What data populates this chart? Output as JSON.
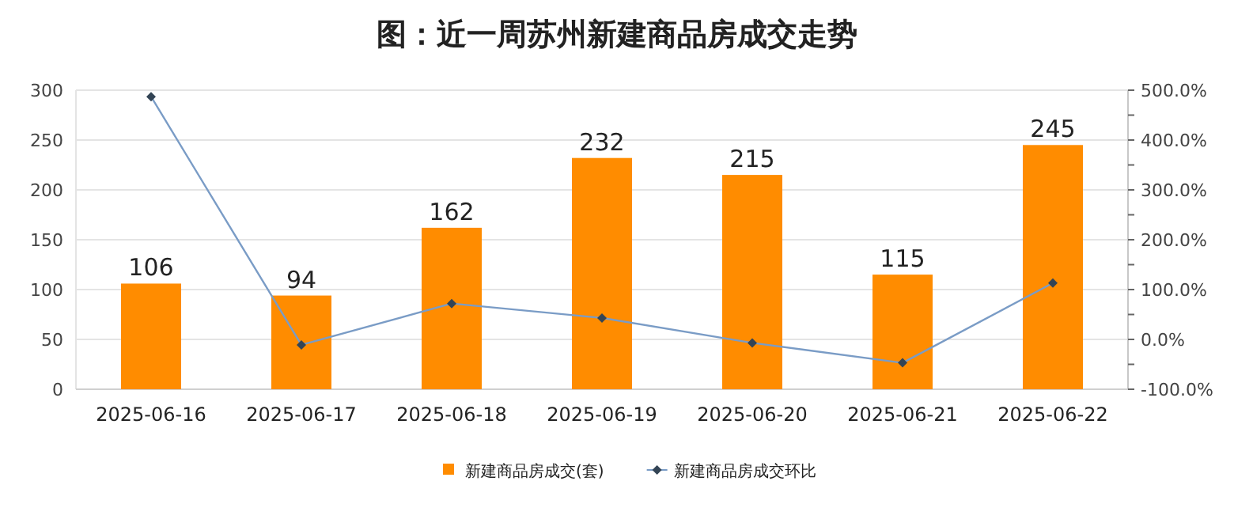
{
  "chart_data": {
    "type": "bar",
    "title": "图：近一周苏州新建商品房成交走势",
    "categories": [
      "2025-06-16",
      "2025-06-17",
      "2025-06-18",
      "2025-06-19",
      "2025-06-20",
      "2025-06-21",
      "2025-06-22"
    ],
    "series": [
      {
        "name": "新建商品房成交(套)",
        "color": "#ff8c00",
        "values": [
          106,
          94,
          162,
          232,
          215,
          115,
          245
        ],
        "value_labels": [
          "106",
          "94",
          "162",
          "232",
          "215",
          "115",
          "245"
        ]
      },
      {
        "name": "新建商品房成交环比",
        "type": "line",
        "axis": "y2",
        "color": "#7a9cc6",
        "marker": "diamond",
        "values": [
          487,
          -11,
          72,
          43,
          -7,
          -47,
          113
        ]
      }
    ],
    "ylim": [
      0,
      300
    ],
    "yticks": [
      0,
      50,
      100,
      150,
      200,
      250,
      300
    ],
    "y2lim": [
      -100,
      500
    ],
    "y2ticks": [
      {
        "value": -100,
        "label": "-100.0%"
      },
      {
        "value": -50,
        "label": null
      },
      {
        "value": 0,
        "label": "0.0%"
      },
      {
        "value": 50,
        "label": null
      },
      {
        "value": 100,
        "label": "100.0%"
      },
      {
        "value": 150,
        "label": null
      },
      {
        "value": 200,
        "label": "200.0%"
      },
      {
        "value": 250,
        "label": null
      },
      {
        "value": 300,
        "label": "300.0%"
      },
      {
        "value": 350,
        "label": null
      },
      {
        "value": 400,
        "label": "400.0%"
      },
      {
        "value": 450,
        "label": null
      },
      {
        "value": 500,
        "label": "500.0%"
      }
    ],
    "grid": "y",
    "legend": "bottom"
  }
}
